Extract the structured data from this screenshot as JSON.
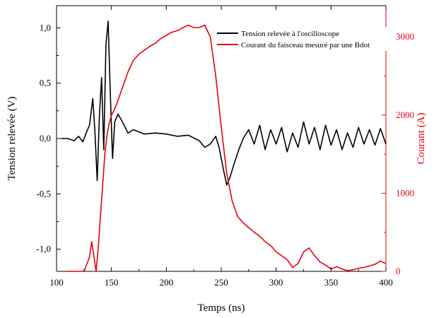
{
  "chart_data": {
    "type": "line",
    "title": "",
    "xlabel": "Temps (ns)",
    "ylabel_left": "Tension relevée (V)",
    "ylabel_right": "Courant (A)",
    "xlim": [
      100,
      400
    ],
    "ylim_left": [
      -1.2,
      1.2
    ],
    "ylim_right": [
      0,
      3400
    ],
    "xticks": [
      100,
      150,
      200,
      250,
      300,
      350,
      400
    ],
    "xtick_labels": [
      "100",
      "150",
      "200",
      "250",
      "300",
      "350",
      "400"
    ],
    "yticks_left": [
      -1.0,
      -0.5,
      0.0,
      0.5,
      1.0
    ],
    "ytick_labels_left": [
      "-1,0",
      "-0,5",
      "0,0",
      "0,5",
      "1,0"
    ],
    "yticks_right": [
      0,
      1000,
      2000,
      3000
    ],
    "ytick_labels_right": [
      "0",
      "1000",
      "2000",
      "3000"
    ],
    "legend_position": "top-right",
    "grid": false,
    "series": [
      {
        "name": "Tension relevée à l'oscilloscope",
        "axis": "left",
        "color": "#000000",
        "x": [
          104,
          110,
          116,
          120,
          124,
          127,
          130,
          133,
          135,
          137,
          139,
          141,
          143,
          145,
          147,
          149,
          151,
          153,
          156,
          160,
          165,
          170,
          175,
          180,
          190,
          200,
          210,
          220,
          230,
          235,
          240,
          245,
          248,
          252,
          255,
          258,
          262,
          266,
          270,
          275,
          280,
          285,
          290,
          295,
          300,
          305,
          310,
          315,
          320,
          325,
          330,
          335,
          340,
          345,
          350,
          355,
          360,
          365,
          370,
          375,
          380,
          385,
          390,
          395,
          400
        ],
        "y": [
          0.0,
          0.0,
          -0.02,
          0.02,
          -0.03,
          0.05,
          0.12,
          0.36,
          0.05,
          -0.38,
          0.2,
          0.55,
          -0.1,
          0.85,
          1.06,
          0.4,
          -0.18,
          0.15,
          0.22,
          0.15,
          0.05,
          0.08,
          0.06,
          0.04,
          0.05,
          0.04,
          0.02,
          0.03,
          -0.02,
          -0.08,
          -0.05,
          0.02,
          -0.08,
          -0.28,
          -0.42,
          -0.35,
          -0.22,
          -0.1,
          0.0,
          0.08,
          -0.05,
          0.12,
          -0.1,
          0.08,
          -0.05,
          0.1,
          -0.12,
          0.05,
          -0.08,
          0.15,
          -0.05,
          0.1,
          -0.1,
          0.12,
          -0.06,
          0.08,
          -0.1,
          0.05,
          -0.08,
          0.1,
          -0.05,
          0.08,
          -0.06,
          0.09,
          -0.05
        ]
      },
      {
        "name": "Courant du faisceau mesuré par une Bdot",
        "axis": "right",
        "color": "#e8000b",
        "x": [
          109,
          115,
          120,
          125,
          130,
          132,
          134,
          136,
          138,
          140,
          142,
          144,
          146,
          148,
          150,
          152,
          155,
          160,
          165,
          170,
          175,
          180,
          185,
          190,
          195,
          200,
          205,
          210,
          215,
          220,
          225,
          230,
          235,
          240,
          245,
          250,
          255,
          260,
          265,
          270,
          275,
          280,
          285,
          290,
          295,
          300,
          305,
          310,
          315,
          320,
          325,
          330,
          335,
          340,
          345,
          350,
          355,
          360,
          365,
          370,
          375,
          380,
          385,
          390,
          395,
          400
        ],
        "y": [
          0,
          0,
          0,
          0,
          180,
          380,
          200,
          0,
          300,
          700,
          1100,
          1500,
          1750,
          1900,
          2000,
          2050,
          2150,
          2350,
          2550,
          2700,
          2780,
          2830,
          2880,
          2920,
          2980,
          3020,
          3060,
          3080,
          3120,
          3150,
          3120,
          3120,
          3150,
          3000,
          2500,
          1850,
          1250,
          900,
          700,
          620,
          560,
          500,
          450,
          380,
          330,
          250,
          200,
          150,
          50,
          100,
          250,
          300,
          200,
          120,
          80,
          30,
          60,
          30,
          10,
          20,
          40,
          50,
          70,
          90,
          130,
          100
        ]
      }
    ]
  }
}
